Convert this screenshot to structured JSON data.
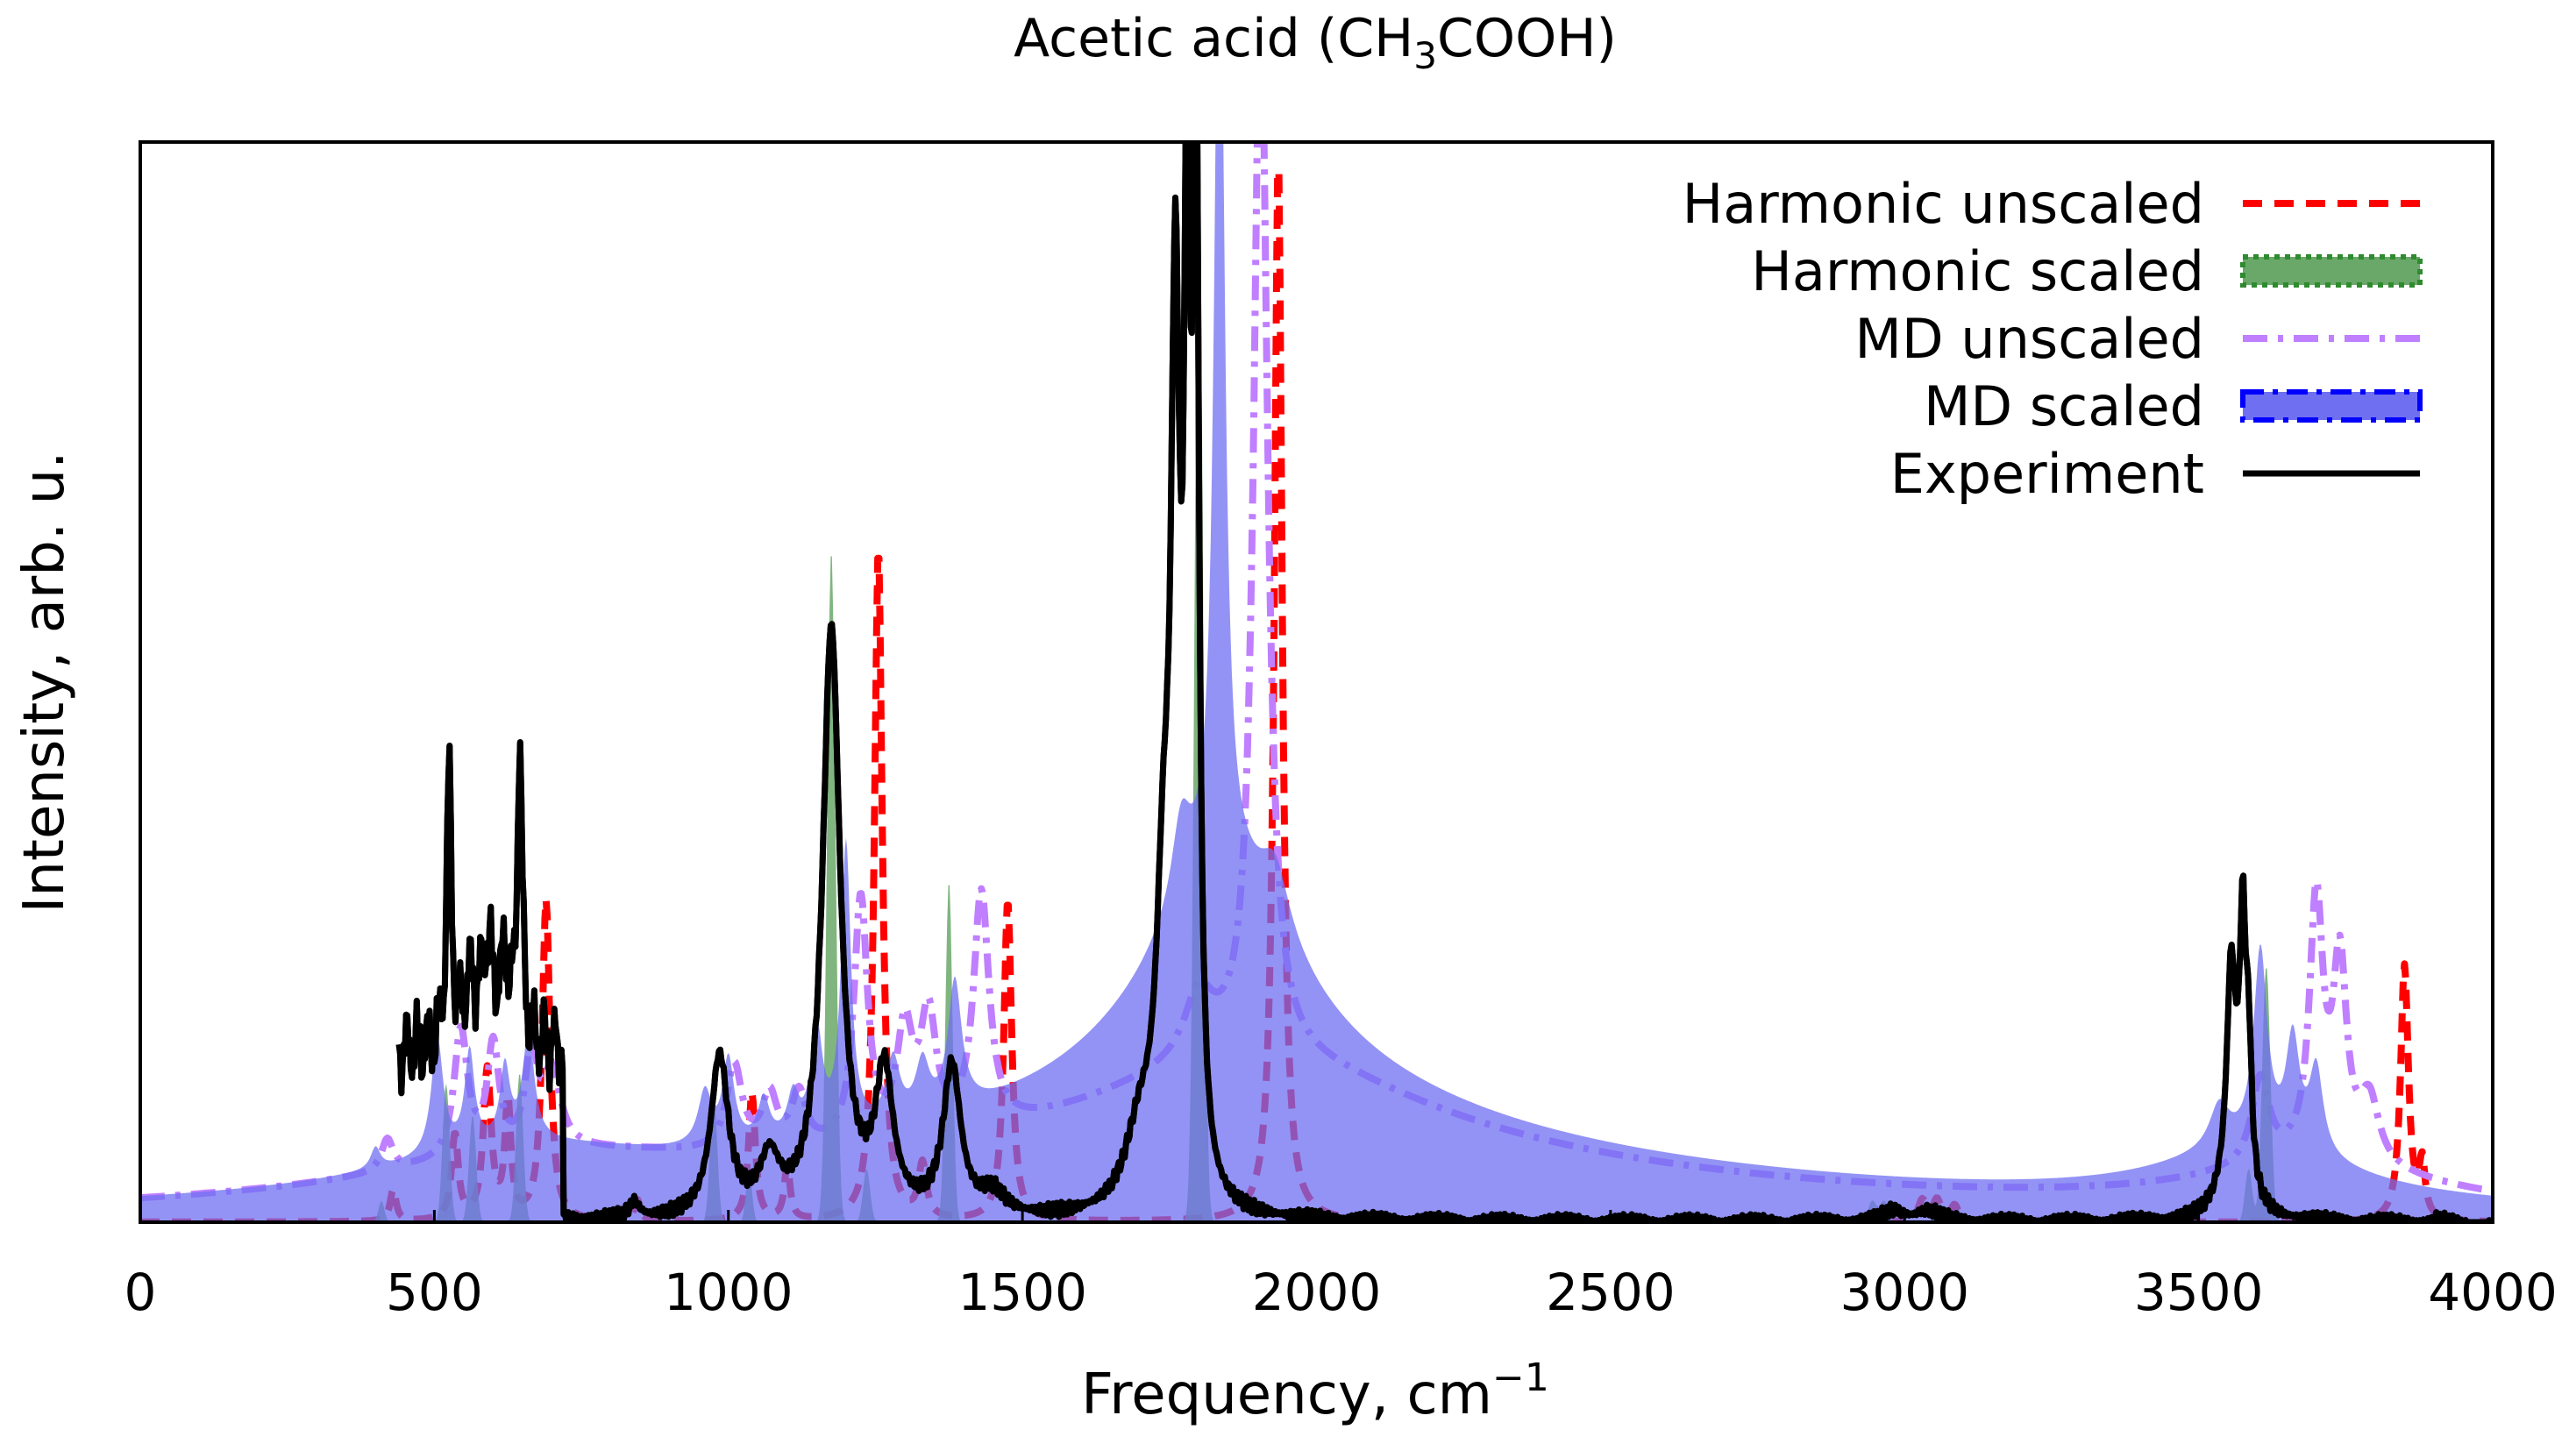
{
  "chart_data": {
    "type": "line",
    "title_main": "Acetic acid (CH",
    "title_sub": "3",
    "title_rest": "COOH)",
    "xlabel_main": "Frequency, cm",
    "xlabel_sup": "−1",
    "ylabel": "Intensity, arb. u.",
    "xlim": [
      0,
      4000
    ],
    "ylim": [
      0,
      1.0
    ],
    "x_ticks": [
      0,
      500,
      1000,
      1500,
      2000,
      2500,
      3000,
      3500,
      4000
    ],
    "x_tick_labels": [
      "0",
      "500",
      "1000",
      "1500",
      "2000",
      "2500",
      "3000",
      "3500",
      "4000"
    ],
    "grid": false,
    "legend_position": "top-right",
    "series": [
      {
        "name": "Harmonic unscaled",
        "style": "dashed",
        "color": "#ff0000",
        "peaks": [
          [
            430,
            0.03,
            6
          ],
          [
            535,
            0.08,
            7
          ],
          [
            590,
            0.14,
            8
          ],
          [
            625,
            0.11,
            6
          ],
          [
            690,
            0.3,
            8
          ],
          [
            845,
            0.02,
            6
          ],
          [
            1040,
            0.12,
            7
          ],
          [
            1100,
            0.05,
            6
          ],
          [
            1255,
            0.63,
            8
          ],
          [
            1330,
            0.05,
            8
          ],
          [
            1475,
            0.3,
            8
          ],
          [
            1935,
            1.0,
            8
          ],
          [
            3030,
            0.02,
            8
          ],
          [
            3055,
            0.02,
            8
          ],
          [
            3085,
            0.015,
            8
          ],
          [
            3850,
            0.24,
            8
          ],
          [
            3880,
            0.05,
            6
          ]
        ]
      },
      {
        "name": "MD unscaled",
        "style": "dashdot",
        "color": "#bf7fff",
        "peaks": [
          [
            420,
            0.03,
            12
          ],
          [
            545,
            0.12,
            14
          ],
          [
            600,
            0.1,
            12
          ],
          [
            665,
            0.09,
            12
          ],
          [
            700,
            0.07,
            18
          ],
          [
            1010,
            0.08,
            16
          ],
          [
            1070,
            0.05,
            15
          ],
          [
            1120,
            0.05,
            15
          ],
          [
            1225,
            0.23,
            14
          ],
          [
            1300,
            0.1,
            16
          ],
          [
            1430,
            0.22,
            16
          ],
          [
            1340,
            0.11,
            16
          ],
          [
            1905,
            1.0,
            14
          ],
          [
            1800,
            0.06,
            30
          ],
          [
            3605,
            0.08,
            18
          ],
          [
            3700,
            0.24,
            14
          ],
          [
            3740,
            0.18,
            14
          ],
          [
            3790,
            0.06,
            20
          ]
        ],
        "background": [
          [
            1900,
            0.1,
            350
          ],
          [
            1900,
            0.05,
            900
          ],
          [
            700,
            0.04,
            400
          ],
          [
            3700,
            0.04,
            250
          ]
        ]
      },
      {
        "name": "Harmonic scaled",
        "style": "filled-dotted",
        "color": "#2e8b2e",
        "fill": "#6aa86a",
        "peaks": [
          [
            410,
            0.02,
            5
          ],
          [
            520,
            0.13,
            6
          ],
          [
            565,
            0.1,
            6
          ],
          [
            645,
            0.14,
            6
          ],
          [
            785,
            0.01,
            5
          ],
          [
            975,
            0.12,
            6
          ],
          [
            1035,
            0.05,
            5
          ],
          [
            1175,
            0.63,
            7
          ],
          [
            1235,
            0.05,
            6
          ],
          [
            1375,
            0.32,
            6
          ],
          [
            1800,
            1.0,
            7
          ],
          [
            2945,
            0.02,
            7
          ],
          [
            2965,
            0.02,
            7
          ],
          [
            3615,
            0.24,
            7
          ],
          [
            3585,
            0.05,
            6
          ]
        ]
      },
      {
        "name": "MD scaled",
        "style": "filled-dashdot",
        "color": "#0000ff",
        "fill": "#6f6ff2",
        "peaks": [
          [
            400,
            0.02,
            10
          ],
          [
            505,
            0.11,
            12
          ],
          [
            560,
            0.09,
            10
          ],
          [
            620,
            0.07,
            10
          ],
          [
            660,
            0.1,
            12
          ],
          [
            960,
            0.05,
            14
          ],
          [
            1000,
            0.08,
            12
          ],
          [
            1060,
            0.04,
            12
          ],
          [
            1110,
            0.04,
            12
          ],
          [
            1150,
            0.1,
            12
          ],
          [
            1200,
            0.27,
            10
          ],
          [
            1280,
            0.06,
            14
          ],
          [
            1385,
            0.12,
            14
          ],
          [
            1330,
            0.05,
            14
          ],
          [
            1835,
            0.98,
            10
          ],
          [
            1770,
            0.08,
            20
          ],
          [
            1930,
            0.06,
            30
          ],
          [
            3605,
            0.18,
            14
          ],
          [
            3660,
            0.1,
            14
          ],
          [
            3700,
            0.08,
            14
          ],
          [
            3535,
            0.04,
            20
          ]
        ],
        "background": [
          [
            1840,
            0.2,
            160
          ],
          [
            1850,
            0.08,
            500
          ],
          [
            1900,
            0.04,
            1100
          ],
          [
            650,
            0.04,
            300
          ],
          [
            3600,
            0.05,
            200
          ]
        ]
      },
      {
        "name": "Experiment",
        "style": "solid",
        "color": "#000000",
        "x_start": 440,
        "peaks": [
          [
            525,
            0.25,
            5
          ],
          [
            645,
            0.28,
            5
          ],
          [
            590,
            0.09,
            14
          ],
          [
            560,
            0.05,
            12
          ],
          [
            620,
            0.07,
            8
          ],
          [
            840,
            0.015,
            10
          ],
          [
            985,
            0.15,
            18
          ],
          [
            1070,
            0.05,
            20
          ],
          [
            1175,
            0.55,
            18
          ],
          [
            1265,
            0.13,
            18
          ],
          [
            1380,
            0.14,
            18
          ],
          [
            1450,
            0.02,
            25
          ],
          [
            1760,
            0.75,
            9
          ],
          [
            1780,
            0.85,
            6
          ],
          [
            1795,
            1.0,
            6
          ],
          [
            1740,
            0.25,
            15
          ],
          [
            1700,
            0.07,
            30
          ],
          [
            2980,
            0.01,
            20
          ],
          [
            3040,
            0.01,
            25
          ],
          [
            3555,
            0.16,
            8
          ],
          [
            3575,
            0.22,
            6
          ],
          [
            3560,
            0.08,
            20
          ],
          [
            3585,
            0.12,
            6
          ]
        ]
      }
    ]
  }
}
